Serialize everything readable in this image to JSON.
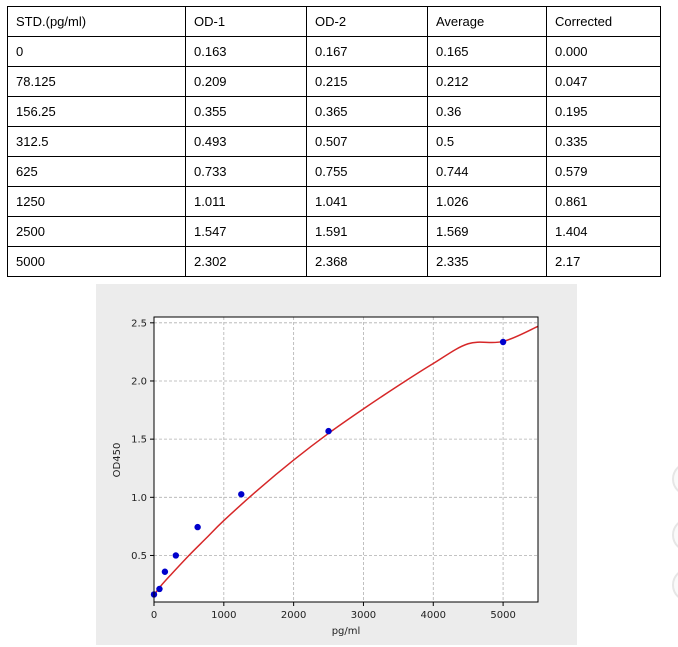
{
  "table": {
    "headers": [
      "STD.(pg/ml)",
      "OD-1",
      "OD-2",
      "Average",
      "Corrected"
    ],
    "rows": [
      [
        "0",
        "0.163",
        "0.167",
        "0.165",
        "0.000"
      ],
      [
        "78.125",
        "0.209",
        "0.215",
        "0.212",
        "0.047"
      ],
      [
        "156.25",
        "0.355",
        "0.365",
        "0.36",
        "0.195"
      ],
      [
        "312.5",
        "0.493",
        "0.507",
        "0.5",
        "0.335"
      ],
      [
        "625",
        "0.733",
        "0.755",
        "0.744",
        "0.579"
      ],
      [
        "1250",
        "1.011",
        "1.041",
        "1.026",
        "0.861"
      ],
      [
        "2500",
        "1.547",
        "1.591",
        "1.569",
        "1.404"
      ],
      [
        "5000",
        "2.302",
        "2.368",
        "2.335",
        "2.17"
      ]
    ]
  },
  "chart_data": {
    "type": "scatter",
    "title": "",
    "xlabel": "pg/ml",
    "ylabel": "OD450",
    "xlim": [
      0,
      5500
    ],
    "ylim": [
      0.1,
      2.55
    ],
    "x_ticks": [
      "0",
      "1000",
      "2000",
      "3000",
      "4000",
      "5000"
    ],
    "y_ticks": [
      "0.5",
      "1.0",
      "1.5",
      "2.0",
      "2.5"
    ],
    "grid": true,
    "series": [
      {
        "kind": "points",
        "color": "#0000cc",
        "x": [
          0,
          78.125,
          156.25,
          312.5,
          625,
          1250,
          2500,
          5000
        ],
        "y": [
          0.165,
          0.212,
          0.36,
          0.5,
          0.744,
          1.026,
          1.569,
          2.335
        ]
      },
      {
        "kind": "fit-curve",
        "color": "#d62728",
        "x": [
          0,
          100,
          250,
          500,
          750,
          1000,
          1500,
          2000,
          2500,
          3000,
          3500,
          4000,
          4500,
          5000,
          5500
        ],
        "y": [
          0.16,
          0.24,
          0.34,
          0.5,
          0.65,
          0.8,
          1.07,
          1.32,
          1.55,
          1.76,
          1.96,
          2.15,
          2.32,
          2.34,
          2.47
        ]
      }
    ]
  }
}
